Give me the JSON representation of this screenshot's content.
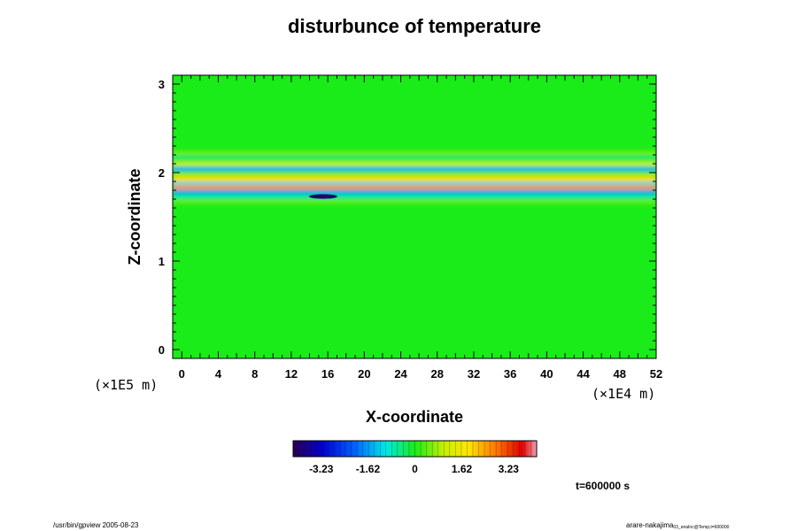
{
  "chart_data": {
    "type": "heatmap",
    "title": "disturbunce of temperature",
    "xlabel": "X-coordinate",
    "ylabel": "Z-coordinate",
    "x_unit": "(×1E4 m)",
    "z_unit": "(×1E5 m)",
    "xlim": [
      -1,
      52
    ],
    "ylim": [
      -0.1,
      3.1
    ],
    "x_ticks": [
      "0",
      "4",
      "8",
      "12",
      "16",
      "20",
      "24",
      "28",
      "32",
      "36",
      "40",
      "44",
      "48",
      "52"
    ],
    "y_ticks": [
      "0",
      "1",
      "2",
      "3"
    ],
    "grid": false,
    "colorbar": {
      "min": -4.2,
      "max": 4.2,
      "tick_values": [
        -3.23,
        -1.62,
        0,
        1.62,
        3.23
      ],
      "tick_labels": [
        "-3.23",
        "-1.62",
        "0",
        "1.62",
        "3.23"
      ]
    },
    "background_value": 0,
    "bands": [
      {
        "z": 2.22,
        "value": 0.5
      },
      {
        "z": 2.17,
        "value": -0.4
      },
      {
        "z": 2.1,
        "value": 1.0
      },
      {
        "z": 2.04,
        "value": -1.4
      },
      {
        "z": 1.97,
        "value": 0.8
      },
      {
        "z": 1.92,
        "value": 2.0
      },
      {
        "z": 1.87,
        "value": -1.1
      },
      {
        "z": 1.83,
        "value": 2.6
      },
      {
        "z": 1.78,
        "value": -1.5
      },
      {
        "z": 1.72,
        "value": -0.6
      },
      {
        "z": 1.67,
        "value": 0.4
      }
    ],
    "cold_spot": {
      "x": 15.5,
      "z": 1.73,
      "value": -4.0
    },
    "time_label": "t=600000 s"
  },
  "footer": {
    "left": "/usr/bin/gpview 2005-08-23",
    "right_main": "arare-nakajima",
    "right_sub": "03_enaInc@Temp,t=600000"
  },
  "colors": {
    "background_field": "#19ec19",
    "axis": "#000000"
  }
}
